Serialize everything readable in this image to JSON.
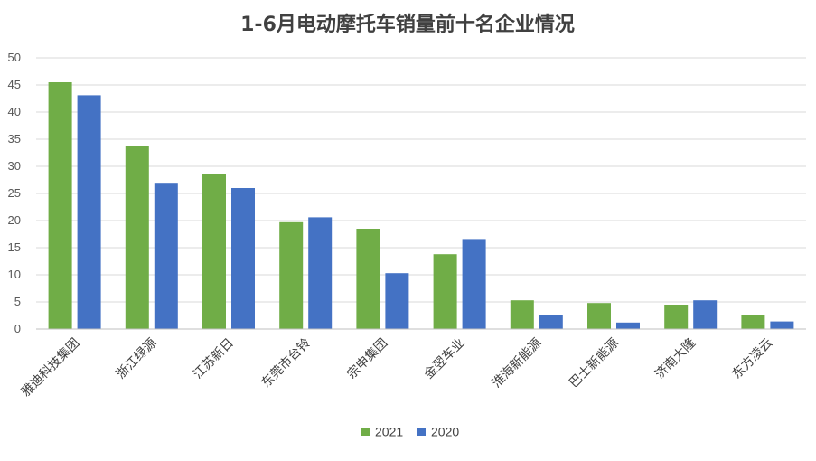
{
  "chart_data": {
    "type": "bar",
    "title": "1-6月电动摩托车销量前十名企业情况",
    "xlabel": "",
    "ylabel": "",
    "ylim": [
      0,
      50
    ],
    "yticks": [
      0,
      5,
      10,
      15,
      20,
      25,
      30,
      35,
      40,
      45,
      50
    ],
    "grid": true,
    "legend_position": "bottom",
    "categories": [
      "雅迪科技集团",
      "浙江绿源",
      "江苏新日",
      "东莞市台铃",
      "宗申集团",
      "金翌车业",
      "淮海新能源",
      "巴士新能源",
      "济南大隆",
      "东方凌云"
    ],
    "series": [
      {
        "name": "2021",
        "color": "#70ad47",
        "values": [
          45.5,
          33.8,
          28.5,
          19.7,
          18.5,
          13.8,
          5.3,
          4.8,
          4.5,
          2.5
        ]
      },
      {
        "name": "2020",
        "color": "#4472c4",
        "values": [
          43.1,
          26.8,
          26.0,
          20.6,
          10.3,
          16.6,
          2.5,
          1.2,
          5.3,
          1.4
        ]
      }
    ]
  }
}
